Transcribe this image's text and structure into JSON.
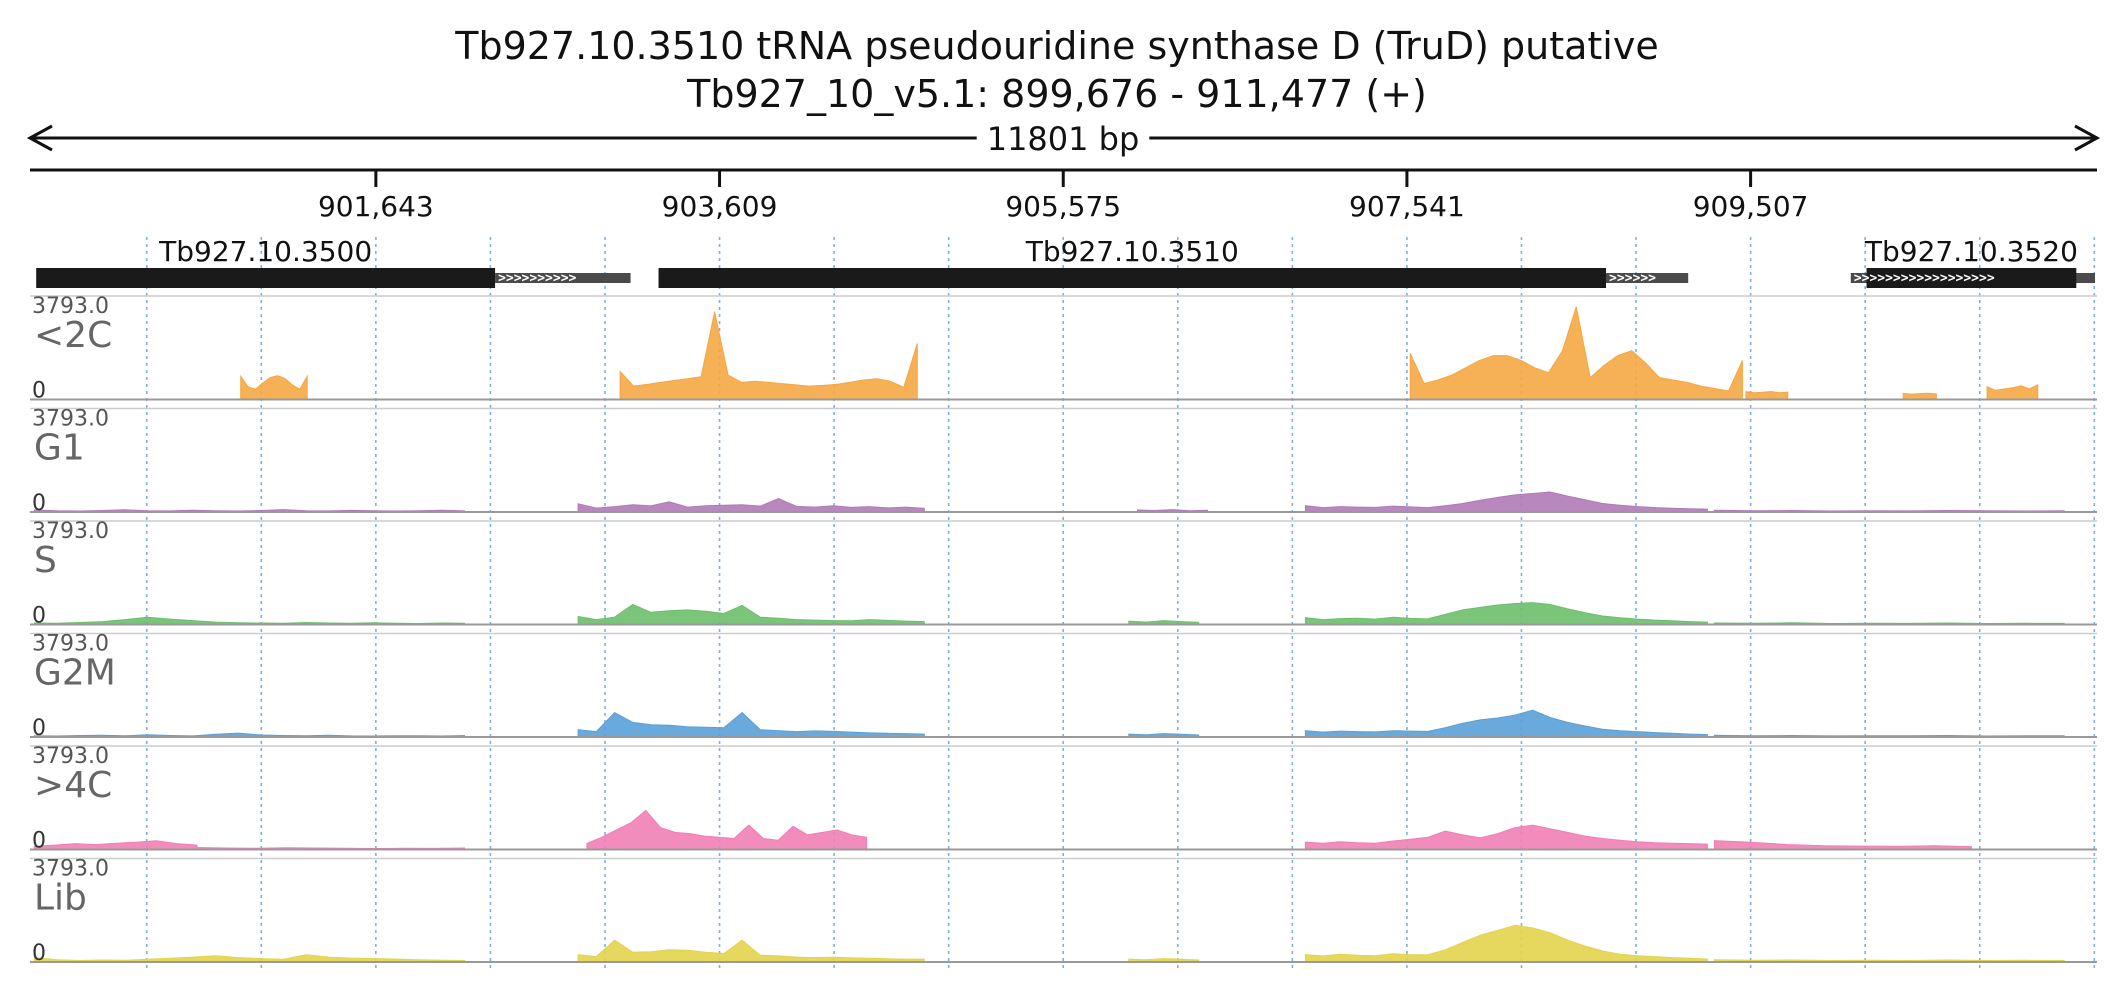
{
  "chart_data": {
    "type": "area",
    "title": "Tb927.10.3510  tRNA pseudouridine synthase D (TruD)  putative",
    "subtitle": "Tb927_10_v5.1: 899,676 - 911,477 (+)",
    "span_label": "11801 bp",
    "xlim": [
      899676,
      911477
    ],
    "ticks": [
      {
        "pos": 901643,
        "label": "901,643"
      },
      {
        "pos": 903609,
        "label": "903,609"
      },
      {
        "pos": 905575,
        "label": "905,575"
      },
      {
        "pos": 907541,
        "label": "907,541"
      },
      {
        "pos": 909507,
        "label": "909,507"
      }
    ],
    "genes": [
      {
        "name": "Tb927.10.3500",
        "cds": [
          899700,
          902325
        ],
        "utr": [
          902325,
          903100
        ]
      },
      {
        "name": "Tb927.10.3510",
        "cds": [
          903260,
          908680
        ],
        "utr": [
          908680,
          909150
        ]
      },
      {
        "name": "Tb927.10.3520",
        "cds": [
          910170,
          911370
        ],
        "utr": [
          910080,
          911477
        ]
      }
    ],
    "ylim": [
      0,
      3793.0
    ],
    "ymax_label": "3793.0",
    "ymin_label": "0",
    "series": [
      {
        "name": "<2C",
        "color": "#f5a742",
        "segments": [
          {
            "start": 900870,
            "end": 901250,
            "values": [
              950,
              520,
              420,
              680,
              900,
              980,
              860,
              600,
              420,
              950
            ]
          },
          {
            "start": 903040,
            "end": 904740,
            "values": [
              1150,
              550,
              620,
              700,
              780,
              850,
              930,
              3600,
              1000,
              700,
              750,
              700,
              650,
              600,
              550,
              580,
              620,
              700,
              800,
              850,
              750,
              500,
              2300
            ]
          },
          {
            "start": 907560,
            "end": 909460,
            "values": [
              1900,
              650,
              800,
              1000,
              1300,
              1600,
              1800,
              1800,
              1600,
              1300,
              1100,
              2000,
              3800,
              900,
              1400,
              1800,
              2000,
              1500,
              900,
              800,
              700,
              550,
              450,
              350,
              1600
            ]
          },
          {
            "start": 909480,
            "end": 909720,
            "values": [
              320,
              280,
              300,
              330,
              280,
              300
            ]
          },
          {
            "start": 910380,
            "end": 910570,
            "values": [
              250,
              220,
              240,
              260,
              230
            ]
          },
          {
            "start": 910860,
            "end": 911150,
            "values": [
              520,
              380,
              430,
              480,
              560,
              440,
              600
            ]
          }
        ]
      },
      {
        "name": "G1",
        "color": "#b07ab7",
        "segments": [
          {
            "start": 899690,
            "end": 902150,
            "values": [
              80,
              50,
              40,
              60,
              90,
              50,
              45,
              70,
              55,
              40,
              60,
              100,
              55,
              45,
              65,
              50,
              40,
              55,
              70,
              45
            ]
          },
          {
            "start": 902800,
            "end": 904780,
            "values": [
              340,
              160,
              220,
              300,
              250,
              420,
              200,
              260,
              280,
              300,
              240,
              550,
              230,
              200,
              260,
              190,
              220,
              170,
              200,
              150
            ]
          },
          {
            "start": 906000,
            "end": 906400,
            "values": [
              80,
              60,
              100,
              50,
              70
            ]
          },
          {
            "start": 906960,
            "end": 909260,
            "values": [
              260,
              180,
              220,
              200,
              190,
              240,
              210,
              180,
              260,
              350,
              480,
              600,
              700,
              760,
              820,
              650,
              500,
              350,
              280,
              220,
              180,
              150,
              130,
              120
            ]
          },
          {
            "start": 909300,
            "end": 911300,
            "values": [
              70,
              50,
              60,
              40,
              55,
              45,
              60,
              50,
              40,
              55
            ]
          }
        ]
      },
      {
        "name": "S",
        "color": "#6bbf6b",
        "segments": [
          {
            "start": 899690,
            "end": 902150,
            "values": [
              60,
              50,
              80,
              120,
              200,
              300,
              220,
              160,
              100,
              70,
              60,
              50,
              80,
              60,
              50,
              70,
              50,
              40,
              60,
              50
            ]
          },
          {
            "start": 902800,
            "end": 904780,
            "values": [
              330,
              200,
              300,
              820,
              500,
              560,
              600,
              540,
              450,
              780,
              300,
              260,
              200,
              180,
              160,
              150,
              200,
              170,
              140,
              120
            ]
          },
          {
            "start": 905950,
            "end": 906350,
            "values": [
              140,
              100,
              160,
              120,
              90
            ]
          },
          {
            "start": 906960,
            "end": 909260,
            "values": [
              280,
              200,
              240,
              260,
              220,
              300,
              250,
              230,
              420,
              600,
              700,
              800,
              860,
              900,
              820,
              640,
              480,
              350,
              280,
              220,
              180,
              150,
              120,
              100
            ]
          },
          {
            "start": 909300,
            "end": 911300,
            "values": [
              60,
              50,
              70,
              40,
              50,
              45,
              60,
              40,
              50,
              45
            ]
          }
        ]
      },
      {
        "name": "G2M",
        "color": "#5aa0d8",
        "segments": [
          {
            "start": 899690,
            "end": 902150,
            "values": [
              50,
              40,
              60,
              70,
              50,
              90,
              60,
              45,
              110,
              160,
              80,
              60,
              50,
              70,
              45,
              40,
              55,
              50,
              40,
              60
            ]
          },
          {
            "start": 902800,
            "end": 904780,
            "values": [
              300,
              220,
              1000,
              600,
              500,
              480,
              420,
              400,
              380,
              1000,
              300,
              260,
              220,
              250,
              230,
              200,
              170,
              150,
              140,
              120
            ]
          },
          {
            "start": 905950,
            "end": 906350,
            "values": [
              120,
              90,
              140,
              110,
              80
            ]
          },
          {
            "start": 906960,
            "end": 909260,
            "values": [
              260,
              200,
              240,
              220,
              210,
              260,
              240,
              230,
              380,
              560,
              700,
              780,
              900,
              1100,
              800,
              600,
              450,
              320,
              260,
              220,
              180,
              150,
              120,
              100
            ]
          },
          {
            "start": 909300,
            "end": 911300,
            "values": [
              70,
              55,
              60,
              45,
              55,
              50,
              60,
              40,
              55,
              50
            ]
          }
        ]
      },
      {
        "name": ">4C",
        "color": "#f07fb5",
        "segments": [
          {
            "start": 899690,
            "end": 900620,
            "values": [
              130,
              180,
              240,
              200,
              260,
              300,
              360,
              240,
              180
            ]
          },
          {
            "start": 900620,
            "end": 902150,
            "values": [
              80,
              60,
              50,
              70,
              60,
              50,
              40,
              50,
              45,
              60
            ]
          },
          {
            "start": 902850,
            "end": 904450,
            "values": [
              250,
              500,
              800,
              1100,
              1600,
              900,
              700,
              650,
              550,
              500,
              450,
              1000,
              450,
              380,
              950,
              600,
              700,
              800,
              600,
              500
            ]
          },
          {
            "start": 906960,
            "end": 909260,
            "values": [
              300,
              260,
              320,
              280,
              260,
              350,
              420,
              500,
              760,
              600,
              480,
              650,
              900,
              1000,
              850,
              700,
              550,
              450,
              380,
              320,
              280,
              260,
              240,
              220
            ]
          },
          {
            "start": 909300,
            "end": 910770,
            "values": [
              360,
              300,
              200,
              150,
              140,
              130,
              150,
              120
            ]
          }
        ]
      },
      {
        "name": "Lib",
        "color": "#e3d34c",
        "segments": [
          {
            "start": 899690,
            "end": 902150,
            "values": [
              180,
              90,
              60,
              80,
              70,
              110,
              150,
              200,
              260,
              180,
              140,
              110,
              300,
              200,
              160,
              140,
              120,
              90,
              70,
              60
            ]
          },
          {
            "start": 902800,
            "end": 904780,
            "values": [
              300,
              220,
              900,
              400,
              420,
              500,
              480,
              400,
              350,
              900,
              280,
              250,
              200,
              180,
              200,
              170,
              150,
              130,
              120,
              110
            ]
          },
          {
            "start": 905950,
            "end": 906350,
            "values": [
              120,
              90,
              140,
              110,
              80
            ]
          },
          {
            "start": 906960,
            "end": 909260,
            "values": [
              300,
              250,
              320,
              280,
              260,
              340,
              300,
              300,
              500,
              800,
              1100,
              1300,
              1500,
              1400,
              1200,
              900,
              650,
              450,
              320,
              260,
              220,
              180,
              150,
              120
            ]
          },
          {
            "start": 909300,
            "end": 911300,
            "values": [
              90,
              70,
              80,
              60,
              70,
              60,
              80,
              60,
              70,
              60
            ]
          }
        ]
      }
    ]
  }
}
